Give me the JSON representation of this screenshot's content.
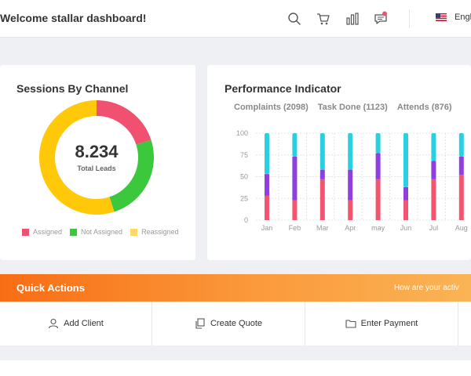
{
  "header": {
    "welcome": "Welcome stallar dashboard!",
    "icons": [
      "search-icon",
      "cart-icon",
      "bar-chart-icon",
      "chat-icon"
    ],
    "notification_color": "#f0506e",
    "language": "Engl"
  },
  "sessions": {
    "title": "Sessions By Channel",
    "center_value": "8.234",
    "center_label": "Total Leads",
    "legend": [
      {
        "label": "Assigned",
        "color": "#f05171"
      },
      {
        "label": "Not Assigned",
        "color": "#3cc83c"
      },
      {
        "label": "Reassigned",
        "color": "#ffd966"
      }
    ]
  },
  "performance": {
    "title": "Performance Indicator",
    "kpis": [
      "Complaints (2098)",
      "Task Done (1123)",
      "Attends (876)"
    ]
  },
  "chart_data": [
    {
      "type": "pie",
      "labels": [
        "Assigned",
        "Not Assigned",
        "Reassigned"
      ],
      "values": [
        20,
        25,
        55
      ],
      "colors": [
        "#f05171",
        "#3cc83c",
        "#ffc90a"
      ]
    },
    {
      "type": "bar",
      "stacked": true,
      "categories": [
        "Jan",
        "Feb",
        "Mar",
        "Apr",
        "may",
        "Jun",
        "Jul",
        "Aug"
      ],
      "series": [
        {
          "values": [
            28,
            23,
            47,
            23,
            47,
            23,
            47,
            52
          ],
          "color": "#f5546e"
        },
        {
          "values": [
            25,
            50,
            11,
            35,
            30,
            15,
            21,
            21
          ],
          "color": "#8f3ee0"
        },
        {
          "values": [
            47,
            27,
            42,
            42,
            23,
            62,
            32,
            27
          ],
          "color": "#28d0e0"
        }
      ],
      "ylim": [
        0,
        100
      ],
      "yticks": [
        0,
        25,
        50,
        75,
        100
      ],
      "grid": true
    }
  ],
  "quick_actions": {
    "title": "Quick Actions",
    "subtitle": "How are your activ",
    "buttons": [
      {
        "label": "Add Client",
        "icon": "user-icon"
      },
      {
        "label": "Create Quote",
        "icon": "documents-icon"
      },
      {
        "label": "Enter Payment",
        "icon": "folder-icon"
      }
    ]
  }
}
